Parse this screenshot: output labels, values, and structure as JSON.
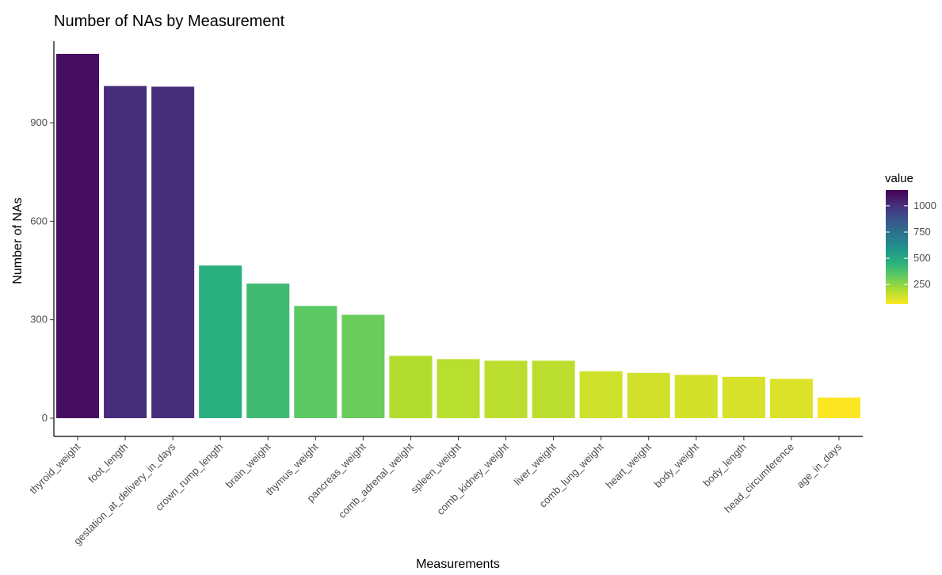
{
  "chart_data": {
    "type": "bar",
    "title": "Number of NAs by Measurement",
    "xlabel": "Measurements",
    "ylabel": "Number of NAs",
    "ylim": [
      0,
      1150
    ],
    "yticks": [
      0,
      300,
      600,
      900
    ],
    "grid": false,
    "categories": [
      "thyroid_weight",
      "foot_length",
      "gestation_at_delivery_in_days",
      "crown_rump_length",
      "brain_weight",
      "thymus_weight",
      "pancreas_weight",
      "comb_adrenal_weight",
      "spleen_weight",
      "comb_kidney_weight",
      "liver_weight",
      "comb_lung_weight",
      "heart_weight",
      "body_weight",
      "body_length",
      "head_circumference",
      "age_in_days"
    ],
    "values": [
      1110,
      1012,
      1010,
      465,
      410,
      342,
      315,
      190,
      180,
      175,
      175,
      143,
      138,
      132,
      126,
      120,
      63
    ],
    "legend": {
      "title": "value",
      "position": "right",
      "ticks": [
        1000,
        750,
        500,
        250
      ],
      "range": [
        63,
        1150
      ],
      "palette": "viridis"
    }
  }
}
